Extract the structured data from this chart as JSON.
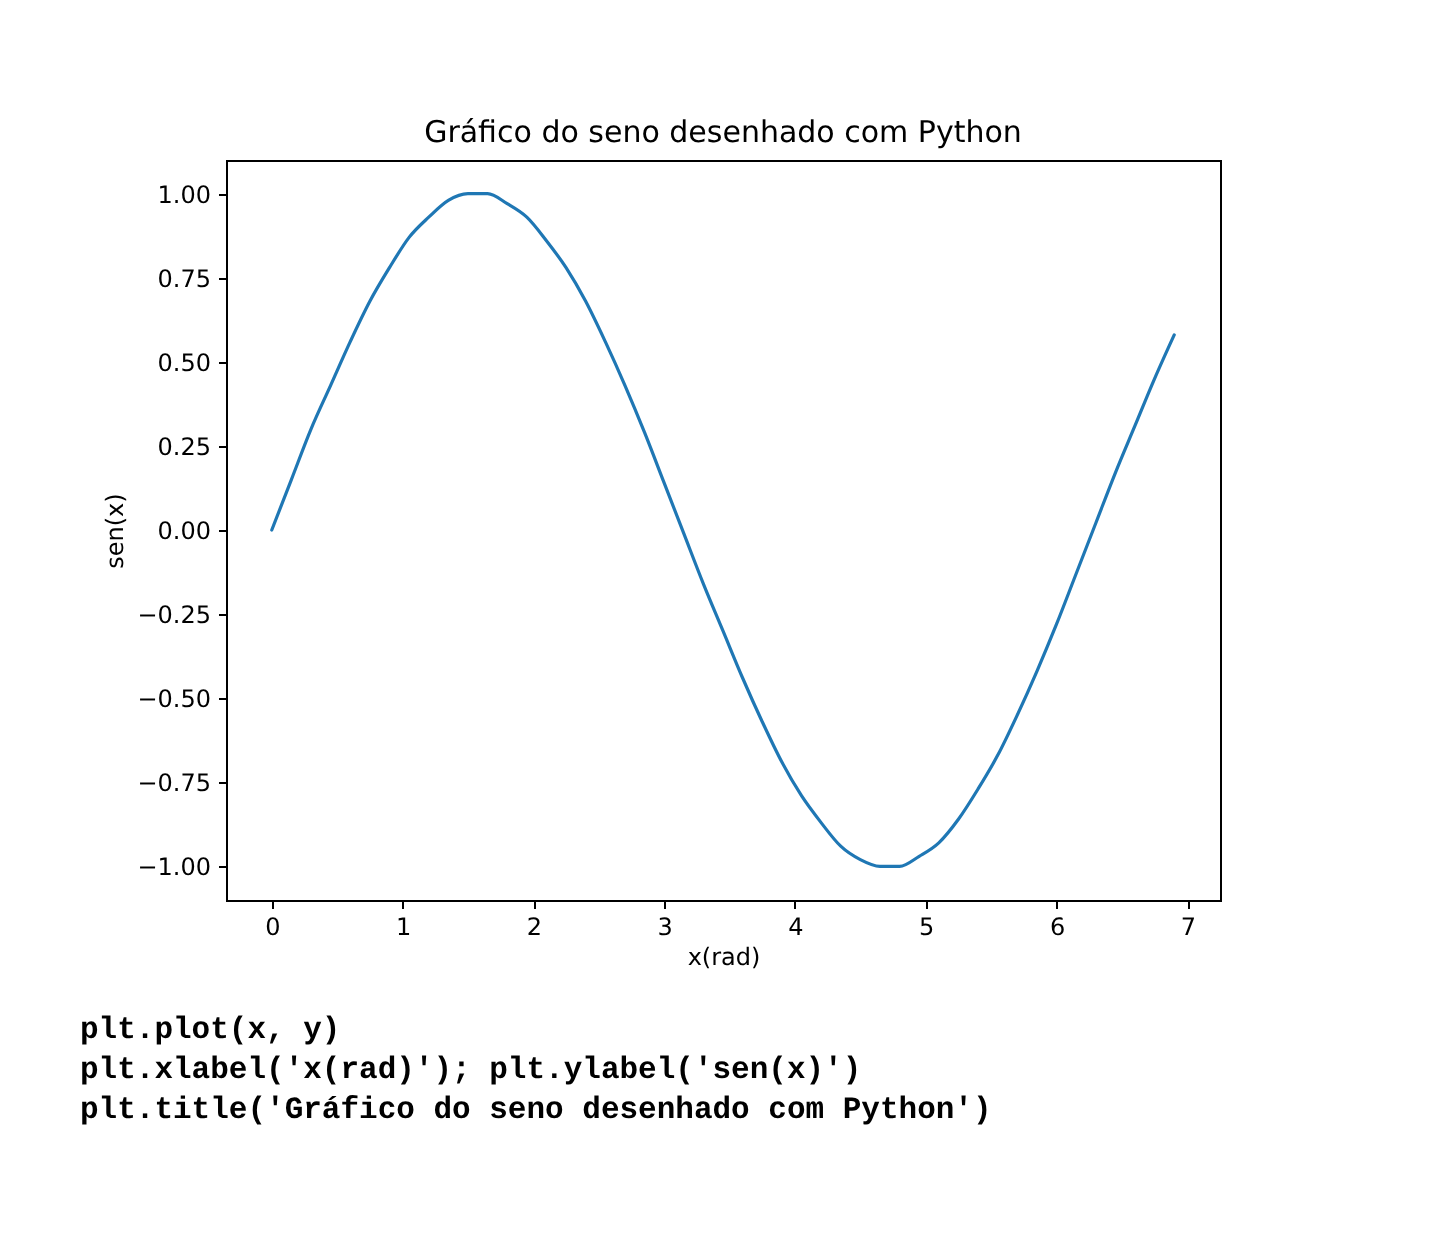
{
  "chart_data": {
    "type": "line",
    "title": "Gráfico do seno desenhado com Python",
    "xlabel": "x(rad)",
    "ylabel": "sen(x)",
    "x": [
      0,
      0.15,
      0.3,
      0.45,
      0.6,
      0.75,
      0.9,
      1.05,
      1.2,
      1.35,
      1.5,
      1.65,
      1.8,
      1.95,
      2.1,
      2.25,
      2.4,
      2.55,
      2.7,
      2.85,
      3.0,
      3.15,
      3.3,
      3.45,
      3.6,
      3.75,
      3.9,
      4.05,
      4.2,
      4.35,
      4.5,
      4.65,
      4.8,
      4.95,
      5.1,
      5.25,
      5.4,
      5.55,
      5.7,
      5.85,
      6.0,
      6.15,
      6.3,
      6.45,
      6.6,
      6.75,
      6.9
    ],
    "series": [
      {
        "color": "#1f77b4",
        "values": [
          0,
          0.15,
          0.3,
          0.43,
          0.56,
          0.68,
          0.78,
          0.87,
          0.93,
          0.98,
          1.0,
          1.0,
          0.97,
          0.93,
          0.86,
          0.78,
          0.68,
          0.56,
          0.43,
          0.29,
          0.14,
          -0.01,
          -0.16,
          -0.3,
          -0.44,
          -0.57,
          -0.69,
          -0.79,
          -0.87,
          -0.94,
          -0.98,
          -1.0,
          -1.0,
          -0.97,
          -0.93,
          -0.86,
          -0.77,
          -0.67,
          -0.55,
          -0.42,
          -0.28,
          -0.13,
          0.02,
          0.17,
          0.31,
          0.45,
          0.58
        ]
      }
    ],
    "xlim": [
      -0.35,
      7.25
    ],
    "ylim": [
      -1.1,
      1.1
    ],
    "xticks": [
      0,
      1,
      2,
      3,
      4,
      5,
      6,
      7
    ],
    "yticks": [
      {
        "value": -1,
        "label": "−1.00"
      },
      {
        "value": -0.75,
        "label": "−0.75"
      },
      {
        "value": -0.5,
        "label": "−0.50"
      },
      {
        "value": -0.25,
        "label": "−0.25"
      },
      {
        "value": 0,
        "label": "0.00"
      },
      {
        "value": 0.25,
        "label": "0.25"
      },
      {
        "value": 0.5,
        "label": "0.50"
      },
      {
        "value": 0.75,
        "label": "0.75"
      },
      {
        "value": 1,
        "label": "1.00"
      }
    ],
    "annotations": [
      "plt.plot(x, y)",
      "plt.xlabel('x(rad)'); plt.ylabel('sen(x)')",
      "plt.title('Gráfico do seno desenhado com Python')"
    ]
  }
}
